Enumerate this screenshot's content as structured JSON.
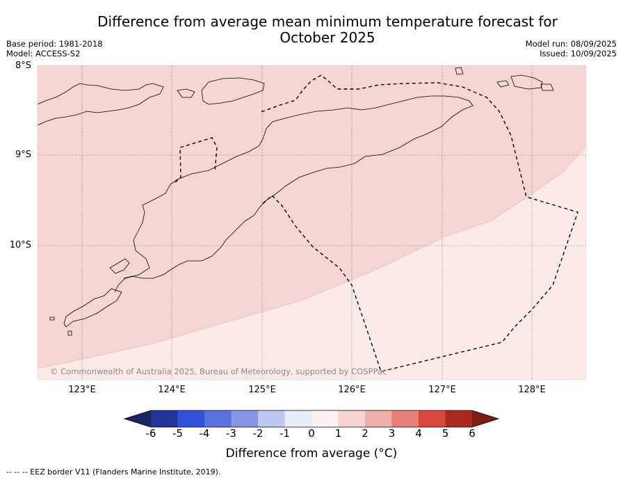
{
  "title_line1": "Difference from average mean minimum temperature forecast for",
  "title_line2": "October 2025",
  "base_period": "Base period: 1981-2018",
  "model": "Model: ACCESS-S2",
  "model_run": "Model run: 08/09/2025",
  "issued": "Issued: 10/09/2025",
  "lat_labels": [
    "8°S",
    "9°S",
    "10°S"
  ],
  "lon_labels": [
    "123°E",
    "124°E",
    "125°E",
    "126°E",
    "127°E",
    "128°E"
  ],
  "copyright": "© Commonwealth of Australia 2025, Bureau of Meteorology, supported by COSPPac",
  "colorbar": {
    "title": "Difference from average (°C)",
    "ticks": [
      "-6",
      "-5",
      "-4",
      "-3",
      "-2",
      "-1",
      "0",
      "1",
      "2",
      "3",
      "4",
      "5",
      "6"
    ],
    "colors": [
      "#26349a",
      "#3350d8",
      "#5a72e0",
      "#8797e6",
      "#bfc8f1",
      "#e9ecf9",
      "#fdf2f1",
      "#f6d3d0",
      "#eeaeaa",
      "#e68079",
      "#d9483f",
      "#aa2a22"
    ],
    "under_color": "#1a2366",
    "over_color": "#7a1d18"
  },
  "map_colors": {
    "anomaly_0_1": "#fbeae8",
    "anomaly_1_2": "#f5d6d4"
  },
  "footnote": "--  --  -- EEZ border V11 (Flanders Marine Institute, 2019)."
}
